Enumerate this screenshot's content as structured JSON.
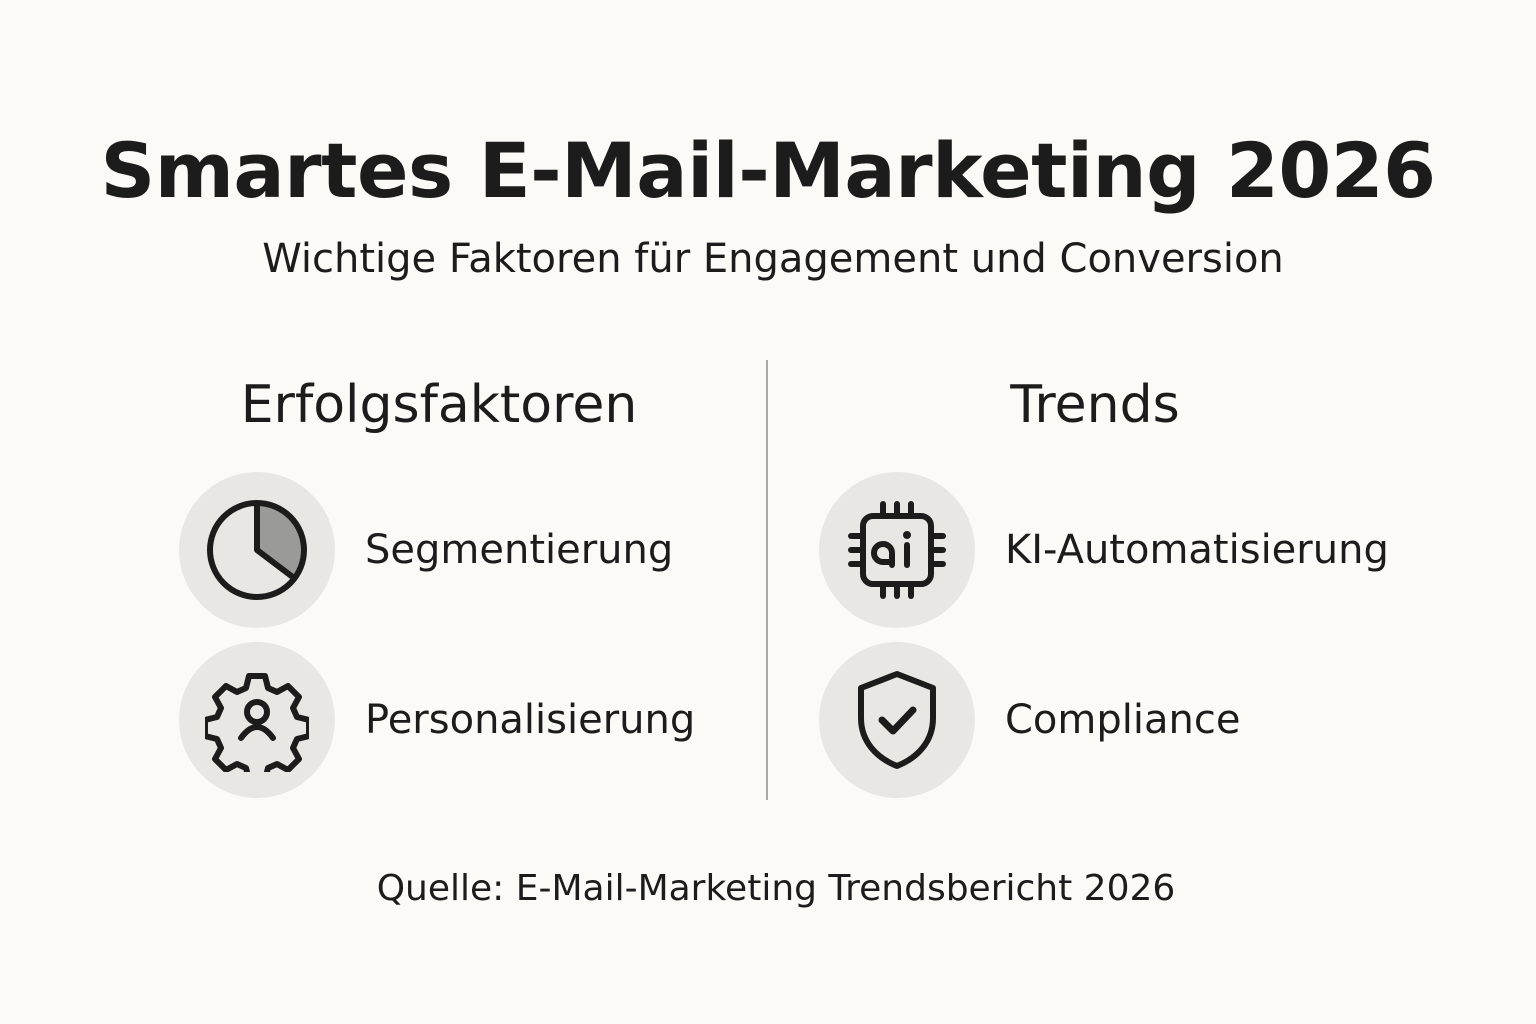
{
  "header": {
    "title": "Smartes E-Mail-Marketing 2026",
    "subtitle": "Wichtige Faktoren für Engagement und Conversion"
  },
  "columns": [
    {
      "heading": "Erfolgsfaktoren",
      "items": [
        {
          "label": "Segmentierung",
          "icon": "pie-chart-icon"
        },
        {
          "label": "Personalisierung",
          "icon": "gear-user-icon"
        }
      ]
    },
    {
      "heading": "Trends",
      "items": [
        {
          "label": "KI-Automatisierung",
          "icon": "ai-chip-icon"
        },
        {
          "label": "Compliance",
          "icon": "shield-check-icon"
        }
      ]
    }
  ],
  "footer": {
    "source": "Quelle: E-Mail-Marketing Trendsbericht 2026"
  },
  "colors": {
    "background": "#fbfaf6",
    "text": "#1c1c1c",
    "icon_circle": "#e8e7e3",
    "pie_slice": "#9a9a98",
    "divider": "#a8a8a4"
  }
}
